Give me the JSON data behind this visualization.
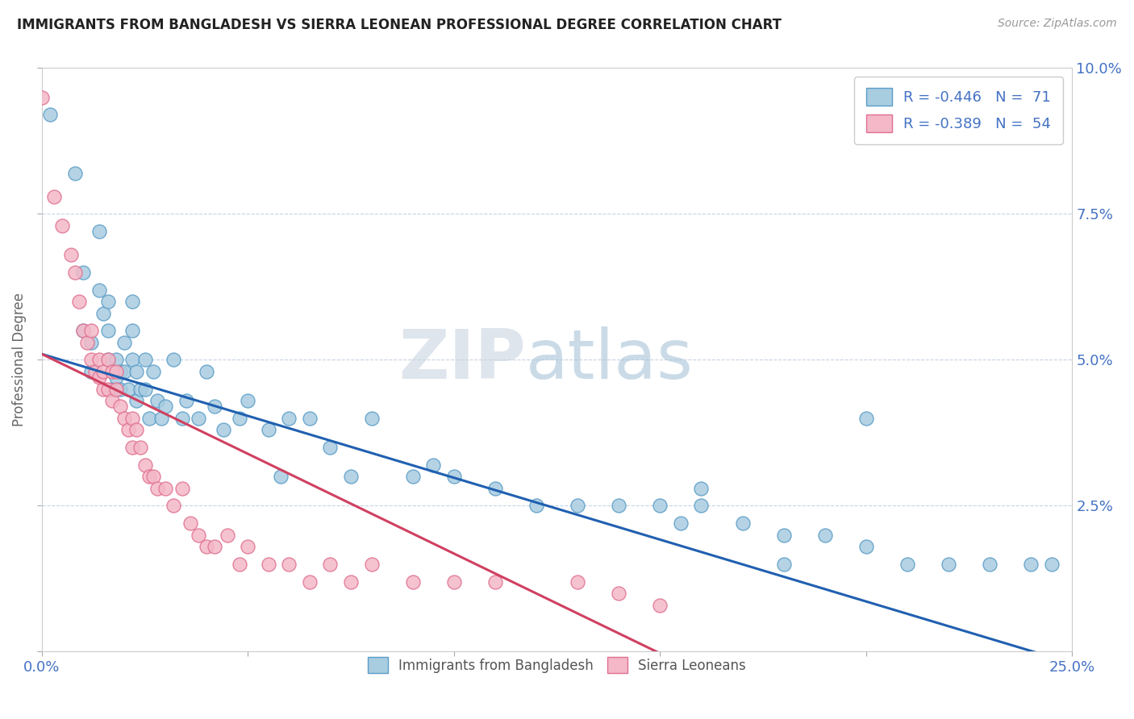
{
  "title": "IMMIGRANTS FROM BANGLADESH VS SIERRA LEONEAN PROFESSIONAL DEGREE CORRELATION CHART",
  "source": "Source: ZipAtlas.com",
  "ylabel": "Professional Degree",
  "xmin": 0.0,
  "xmax": 0.25,
  "ymin": 0.0,
  "ymax": 0.1,
  "xticks": [
    0.0,
    0.05,
    0.1,
    0.15,
    0.2,
    0.25
  ],
  "xtick_labels": [
    "0.0%",
    "",
    "",
    "",
    "",
    "25.0%"
  ],
  "yticks": [
    0.0,
    0.025,
    0.05,
    0.075,
    0.1
  ],
  "ytick_labels_right": [
    "",
    "2.5%",
    "5.0%",
    "7.5%",
    "10.0%"
  ],
  "legend_line1": "R = -0.446   N =  71",
  "legend_line2": "R = -0.389   N =  54",
  "legend_label_blue": "Immigrants from Bangladesh",
  "legend_label_pink": "Sierra Leoneans",
  "blue_color": "#a8cce0",
  "pink_color": "#f4b8c8",
  "blue_edge": "#5b9dc8",
  "pink_edge": "#e07090",
  "trendline_blue": "#2060b0",
  "trendline_pink": "#d04060",
  "blue_x": [
    0.002,
    0.008,
    0.01,
    0.01,
    0.012,
    0.012,
    0.014,
    0.014,
    0.015,
    0.016,
    0.016,
    0.016,
    0.017,
    0.018,
    0.018,
    0.019,
    0.019,
    0.02,
    0.02,
    0.021,
    0.022,
    0.022,
    0.022,
    0.023,
    0.023,
    0.024,
    0.025,
    0.025,
    0.026,
    0.027,
    0.028,
    0.029,
    0.03,
    0.032,
    0.034,
    0.035,
    0.038,
    0.04,
    0.042,
    0.044,
    0.048,
    0.05,
    0.055,
    0.058,
    0.06,
    0.065,
    0.07,
    0.075,
    0.08,
    0.09,
    0.095,
    0.1,
    0.11,
    0.12,
    0.13,
    0.14,
    0.15,
    0.155,
    0.16,
    0.17,
    0.18,
    0.19,
    0.2,
    0.21,
    0.22,
    0.23,
    0.24,
    0.245,
    0.2,
    0.18,
    0.16
  ],
  "blue_y": [
    0.092,
    0.082,
    0.065,
    0.055,
    0.053,
    0.048,
    0.072,
    0.062,
    0.058,
    0.06,
    0.055,
    0.05,
    0.045,
    0.05,
    0.047,
    0.045,
    0.048,
    0.053,
    0.048,
    0.045,
    0.06,
    0.055,
    0.05,
    0.048,
    0.043,
    0.045,
    0.05,
    0.045,
    0.04,
    0.048,
    0.043,
    0.04,
    0.042,
    0.05,
    0.04,
    0.043,
    0.04,
    0.048,
    0.042,
    0.038,
    0.04,
    0.043,
    0.038,
    0.03,
    0.04,
    0.04,
    0.035,
    0.03,
    0.04,
    0.03,
    0.032,
    0.03,
    0.028,
    0.025,
    0.025,
    0.025,
    0.025,
    0.022,
    0.025,
    0.022,
    0.02,
    0.02,
    0.018,
    0.015,
    0.015,
    0.015,
    0.015,
    0.015,
    0.04,
    0.015,
    0.028
  ],
  "pink_x": [
    0.0,
    0.003,
    0.005,
    0.007,
    0.008,
    0.009,
    0.01,
    0.011,
    0.012,
    0.012,
    0.013,
    0.014,
    0.014,
    0.015,
    0.015,
    0.016,
    0.016,
    0.017,
    0.017,
    0.018,
    0.018,
    0.019,
    0.02,
    0.021,
    0.022,
    0.022,
    0.023,
    0.024,
    0.025,
    0.026,
    0.027,
    0.028,
    0.03,
    0.032,
    0.034,
    0.036,
    0.038,
    0.04,
    0.042,
    0.045,
    0.048,
    0.05,
    0.055,
    0.06,
    0.065,
    0.07,
    0.075,
    0.08,
    0.09,
    0.1,
    0.11,
    0.13,
    0.14,
    0.15
  ],
  "pink_y": [
    0.095,
    0.078,
    0.073,
    0.068,
    0.065,
    0.06,
    0.055,
    0.053,
    0.055,
    0.05,
    0.048,
    0.05,
    0.047,
    0.045,
    0.048,
    0.05,
    0.045,
    0.048,
    0.043,
    0.048,
    0.045,
    0.042,
    0.04,
    0.038,
    0.04,
    0.035,
    0.038,
    0.035,
    0.032,
    0.03,
    0.03,
    0.028,
    0.028,
    0.025,
    0.028,
    0.022,
    0.02,
    0.018,
    0.018,
    0.02,
    0.015,
    0.018,
    0.015,
    0.015,
    0.012,
    0.015,
    0.012,
    0.015,
    0.012,
    0.012,
    0.012,
    0.012,
    0.01,
    0.008
  ],
  "trendline_blue_x0": 0.0,
  "trendline_blue_y0": 0.051,
  "trendline_blue_x1": 0.25,
  "trendline_blue_y1": -0.002,
  "trendline_pink_x0": 0.0,
  "trendline_pink_y0": 0.051,
  "trendline_pink_x1": 0.155,
  "trendline_pink_y1": -0.002
}
